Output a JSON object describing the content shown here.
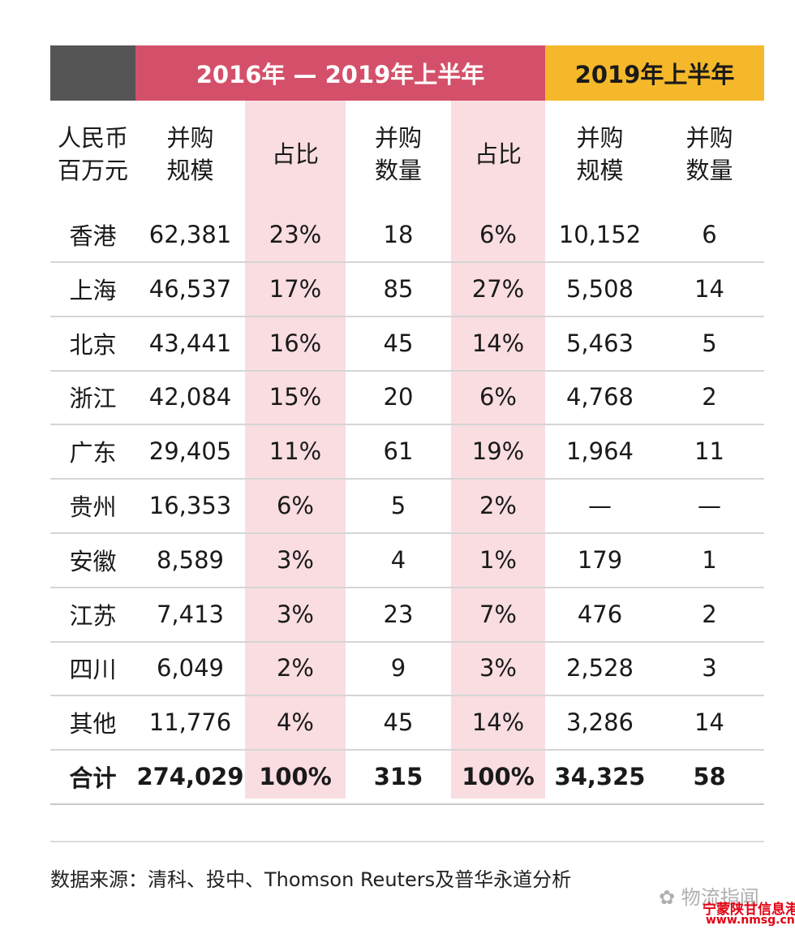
{
  "header": {
    "left": "",
    "period_main": "2016年 — 2019年上半年",
    "period_h1": "2019年上半年"
  },
  "subheaders": [
    "人民币\n百万元",
    "并购\n规模",
    "占比",
    "并购\n数量",
    "占比",
    "并购\n规模",
    "并购\n数量"
  ],
  "rows": [
    [
      "香港",
      "62,381",
      "23%",
      "18",
      "6%",
      "10,152",
      "6"
    ],
    [
      "上海",
      "46,537",
      "17%",
      "85",
      "27%",
      "5,508",
      "14"
    ],
    [
      "北京",
      "43,441",
      "16%",
      "45",
      "14%",
      "5,463",
      "5"
    ],
    [
      "浙江",
      "42,084",
      "15%",
      "20",
      "6%",
      "4,768",
      "2"
    ],
    [
      "广东",
      "29,405",
      "11%",
      "61",
      "19%",
      "1,964",
      "11"
    ],
    [
      "贵州",
      "16,353",
      "6%",
      "5",
      "2%",
      "—",
      "—"
    ],
    [
      "安徽",
      "8,589",
      "3%",
      "4",
      "1%",
      "179",
      "1"
    ],
    [
      "江苏",
      "7,413",
      "3%",
      "23",
      "7%",
      "476",
      "2"
    ],
    [
      "四川",
      "6,049",
      "2%",
      "9",
      "3%",
      "2,528",
      "3"
    ],
    [
      "其他",
      "11,776",
      "4%",
      "45",
      "14%",
      "3,286",
      "14"
    ]
  ],
  "total": [
    "合计",
    "274,029",
    "100%",
    "315",
    "100%",
    "34,325",
    "58"
  ],
  "source": "数据来源：清科、投中、Thomson Reuters及普华永道分析",
  "watermark": {
    "wechat": "物流指闻",
    "site_name": "宁蒙陕甘信息港",
    "site_url": "www.nmsg.cn"
  }
}
